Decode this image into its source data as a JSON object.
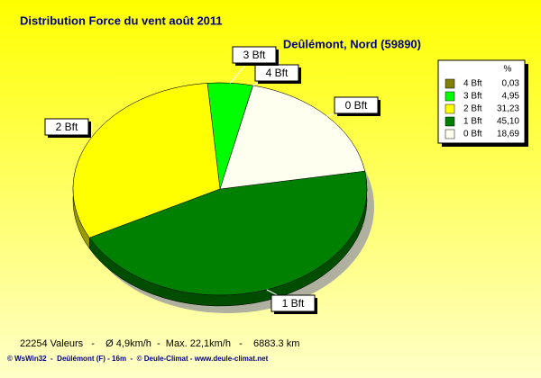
{
  "chart_data": {
    "type": "pie",
    "title": "Distribution Force du vent  août 2011",
    "subtitle": "Deûlémont, Nord (59890)",
    "legend_header": "%",
    "categories": [
      "4 Bft",
      "3 Bft",
      "2 Bft",
      "1 Bft",
      "0 Bft"
    ],
    "values": [
      0.03,
      4.95,
      31.23,
      45.1,
      18.69
    ],
    "value_labels": [
      "0,03",
      "4,95",
      "31,23",
      "45,10",
      "18,69"
    ],
    "colors": [
      "#808000",
      "#00ff00",
      "#ffff00",
      "#008000",
      "#fffff0"
    ],
    "footer": "22254 Valeurs   -    Ø 4,9km/h  -  Max. 22,1km/h   -    6883.3 km",
    "credits": "© WsWin32  -  Deûlémont (F) - 16m  -  © Deule-Climat - www.deule-climat.net"
  }
}
